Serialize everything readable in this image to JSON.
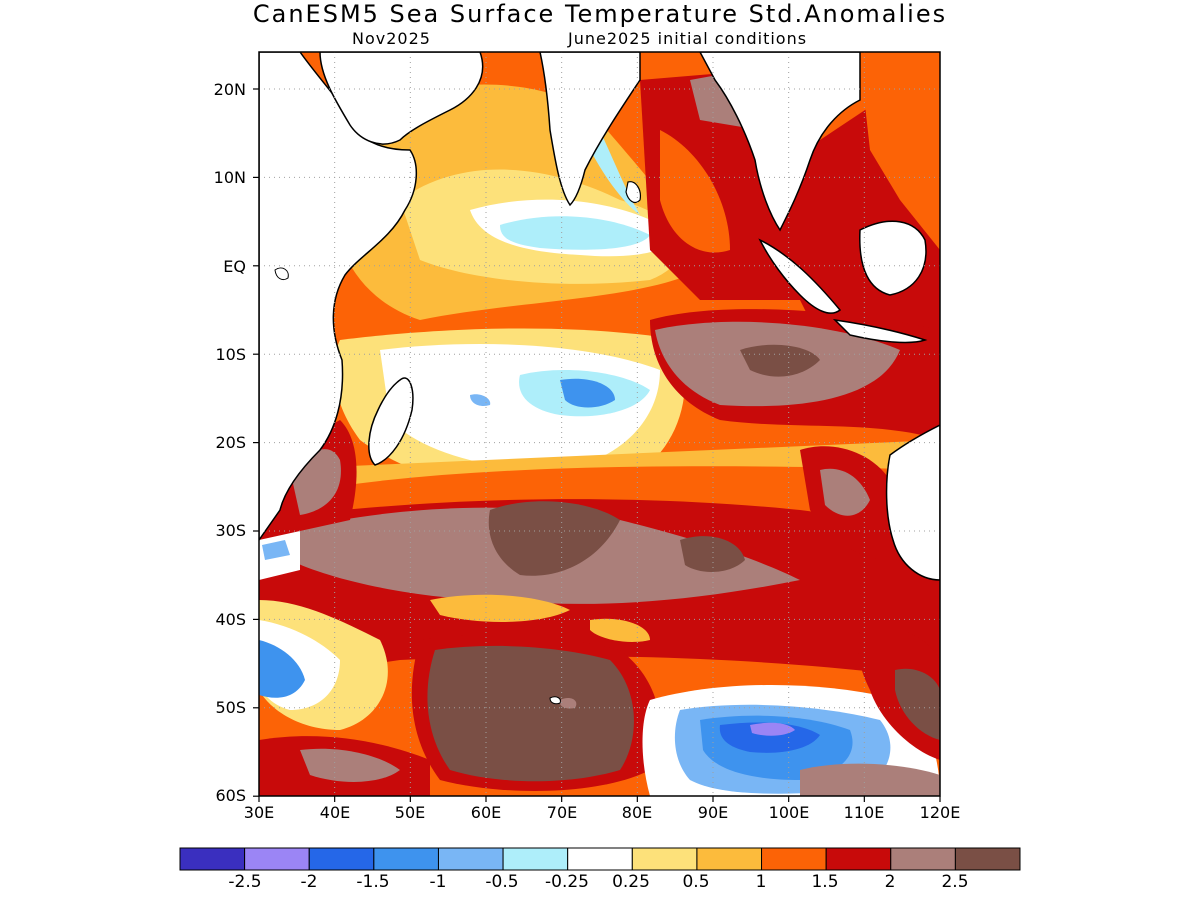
{
  "title": "CanESM5 Sea Surface Temperature Std.Anomalies",
  "subtitle_left": "Nov2025",
  "subtitle_right": "June2025 initial conditions",
  "lat_labels": [
    "20N",
    "10N",
    "EQ",
    "10S",
    "20S",
    "30S",
    "40S",
    "50S",
    "60S"
  ],
  "lon_labels": [
    "30E",
    "40E",
    "50E",
    "60E",
    "70E",
    "80E",
    "90E",
    "100E",
    "110E",
    "120E"
  ],
  "colorbar": {
    "colors": [
      "#3a2fbf",
      "#9b85f5",
      "#2567e8",
      "#3e93ee",
      "#79b6f5",
      "#aeeefa",
      "#ffffff",
      "#fde17a",
      "#fcbb3c",
      "#fc6306",
      "#c80a0a",
      "#ab7f7a",
      "#7a4f45"
    ],
    "labels": [
      "-2.5",
      "-2",
      "-1.5",
      "-1",
      "-0.5",
      "-0.25",
      "0.25",
      "0.5",
      "1",
      "1.5",
      "2",
      "2.5"
    ]
  },
  "colors": {
    "land": "#ffffff",
    "coastline": "#000000",
    "grid": "#a0a0a0",
    "frame": "#000000"
  }
}
